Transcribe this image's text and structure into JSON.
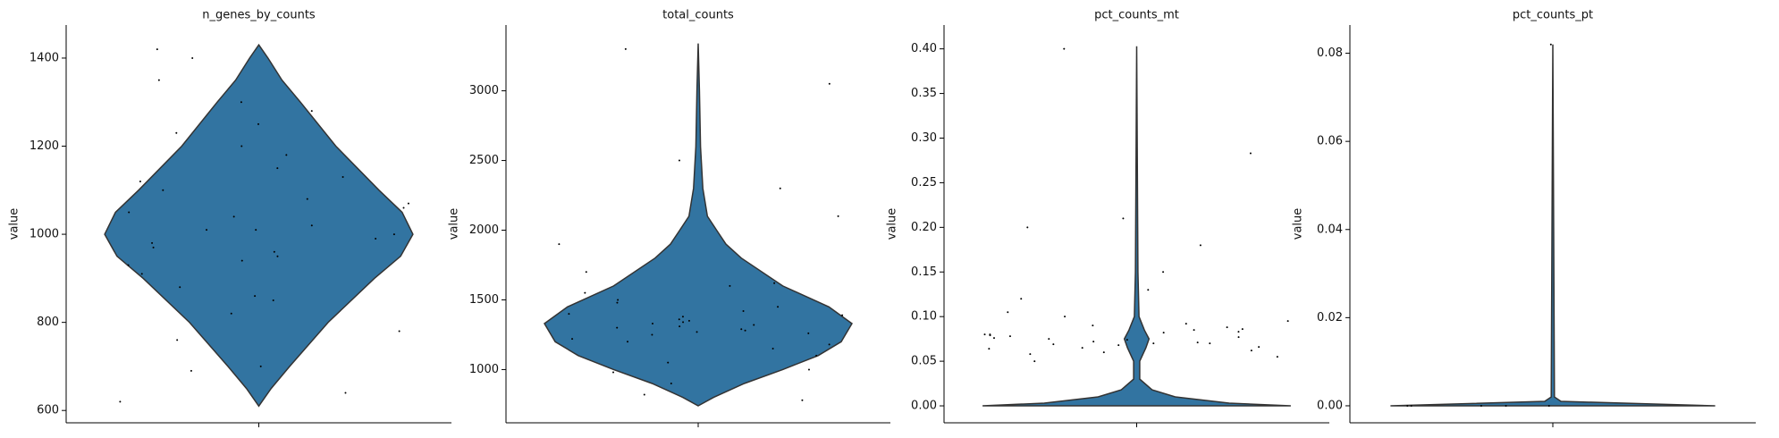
{
  "chart_data": [
    {
      "type": "violin",
      "title": "n_genes_by_counts",
      "y_label": "value",
      "color": "#3274a1",
      "ylim": [
        572,
        1475
      ],
      "yticks": [
        600,
        800,
        1000,
        1200,
        1400
      ],
      "violin": {
        "y": [
          610,
          650,
          700,
          800,
          900,
          950,
          1000,
          1050,
          1100,
          1200,
          1300,
          1350,
          1400,
          1430
        ],
        "width": [
          0,
          0.08,
          0.2,
          0.45,
          0.75,
          0.92,
          1,
          0.93,
          0.78,
          0.5,
          0.27,
          0.15,
          0.06,
          0
        ]
      },
      "points": [
        1010,
        950,
        1120,
        880,
        1300,
        700,
        1050,
        990,
        1180,
        820,
        1400,
        640,
        1080,
        930,
        1250,
        760,
        1020,
        970,
        1150,
        860,
        1350,
        620,
        1000,
        1060,
        910,
        1200,
        780,
        1100,
        1040,
        960,
        1280,
        690,
        1420,
        1070,
        940,
        1230,
        850,
        1010,
        980,
        1130
      ]
    },
    {
      "type": "violin",
      "title": "total_counts",
      "y_label": "value",
      "color": "#3274a1",
      "ylim": [
        618,
        3472
      ],
      "yticks": [
        1000,
        1500,
        2000,
        2500,
        3000
      ],
      "violin": {
        "y": [
          740,
          800,
          900,
          1000,
          1100,
          1200,
          1330,
          1450,
          1600,
          1800,
          1900,
          2000,
          2100,
          2300,
          2600,
          3000,
          3340
        ],
        "width": [
          0,
          0.1,
          0.3,
          0.55,
          0.78,
          0.93,
          1,
          0.85,
          0.55,
          0.28,
          0.18,
          0.12,
          0.06,
          0.03,
          0.015,
          0.008,
          0
        ]
      },
      "points": [
        1330,
        1250,
        1400,
        1180,
        1500,
        1100,
        1350,
        1300,
        1600,
        1050,
        1450,
        1280,
        1700,
        980,
        1380,
        1220,
        1900,
        900,
        1320,
        1420,
        2100,
        820,
        1360,
        1270,
        2500,
        780,
        1340,
        1310,
        3300,
        1480,
        1150,
        1550,
        1200,
        2300,
        1260,
        1390,
        3050,
        1000,
        1620,
        1290
      ]
    },
    {
      "type": "violin",
      "title": "pct_counts_mt",
      "y_label": "value",
      "color": "#3274a1",
      "ylim": [
        -0.019,
        0.4267
      ],
      "yticks": [
        {
          "value": 0,
          "label": "0.00"
        },
        {
          "value": 0.05,
          "label": "0.05"
        },
        {
          "value": 0.1,
          "label": "0.10"
        },
        {
          "value": 0.15,
          "label": "0.15"
        },
        {
          "value": 0.2,
          "label": "0.20"
        },
        {
          "value": 0.25,
          "label": "0.25"
        },
        {
          "value": 0.3,
          "label": "0.30"
        },
        {
          "value": 0.35,
          "label": "0.35"
        },
        {
          "value": 0.4,
          "label": "0.40"
        }
      ],
      "violin": {
        "y": [
          0,
          0.003,
          0.01,
          0.018,
          0.03,
          0.05,
          0.065,
          0.075,
          0.085,
          0.1,
          0.15,
          0.403
        ],
        "width": [
          1,
          0.6,
          0.25,
          0.1,
          0.02,
          0.02,
          0.06,
          0.08,
          0.05,
          0.015,
          0.008,
          0
        ]
      },
      "points": [
        0.07,
        0.08,
        0.065,
        0.09,
        0.075,
        0.06,
        0.085,
        0.07,
        0.1,
        0.055,
        0.08,
        0.072,
        0.15,
        0.068,
        0.078,
        0.095,
        0.21,
        0.062,
        0.082,
        0.074,
        0.12,
        0.088,
        0.066,
        0.4,
        0.079,
        0.058,
        0.18,
        0.071,
        0.092,
        0.283,
        0.069,
        0.083,
        0.05,
        0.076,
        0.105,
        0.064,
        0.13,
        0.077,
        0.086,
        0.2
      ]
    },
    {
      "type": "violin",
      "title": "pct_counts_pt",
      "y_label": "value",
      "color": "#3274a1",
      "ylim": [
        -0.00386,
        0.0864
      ],
      "yticks": [
        {
          "value": 0,
          "label": "0.00"
        },
        {
          "value": 0.02,
          "label": "0.02"
        },
        {
          "value": 0.04,
          "label": "0.04"
        },
        {
          "value": 0.06,
          "label": "0.06"
        },
        {
          "value": 0.08,
          "label": "0.08"
        }
      ],
      "violin": {
        "y": [
          0,
          0.001,
          0.002,
          0.082
        ],
        "width": [
          1,
          0.05,
          0.01,
          0
        ]
      },
      "points": [
        0.082,
        0,
        0,
        0,
        0,
        0
      ]
    }
  ]
}
